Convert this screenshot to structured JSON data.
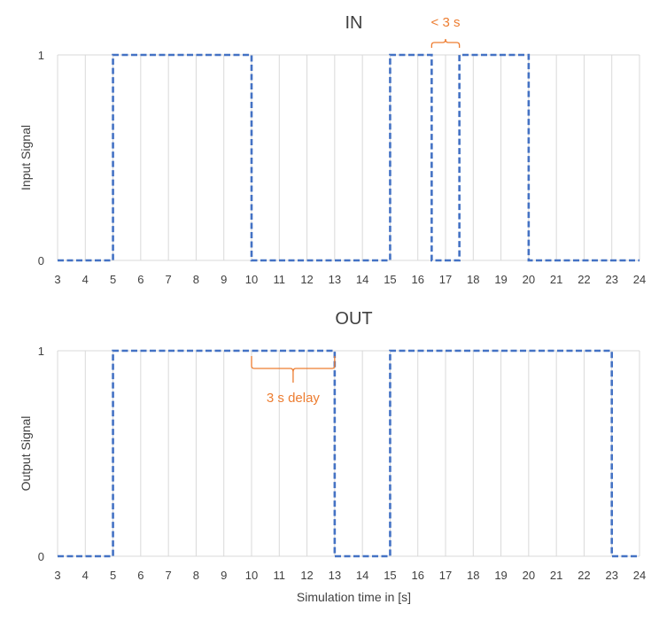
{
  "colors": {
    "series": "#4472c4",
    "annotation": "#ed7d31",
    "grid": "#d9d9d9",
    "text": "#404040"
  },
  "chart_data": [
    {
      "type": "line",
      "title": "IN",
      "xlabel": "",
      "ylabel": "Input Signal",
      "xlim": [
        3,
        24
      ],
      "ylim": [
        0,
        1
      ],
      "x_ticks": [
        3,
        4,
        5,
        6,
        7,
        8,
        9,
        10,
        11,
        12,
        13,
        14,
        15,
        16,
        17,
        18,
        19,
        20,
        21,
        22,
        23,
        24
      ],
      "y_ticks": [
        0,
        1
      ],
      "grid": "vertical",
      "step": true,
      "series": [
        {
          "x": [
            3,
            5,
            5,
            10,
            10,
            15,
            15,
            16.5,
            16.5,
            17.5,
            17.5,
            20,
            20,
            24
          ],
          "y": [
            0,
            0,
            1,
            1,
            0,
            0,
            1,
            1,
            0,
            0,
            1,
            1,
            0,
            0
          ]
        }
      ],
      "annotation": {
        "text": "< 3 s",
        "x_from": 16.5,
        "x_to": 17.5,
        "placement": "above"
      }
    },
    {
      "type": "line",
      "title": "OUT",
      "xlabel": "Simulation time in [s]",
      "ylabel": "Output Signal",
      "xlim": [
        3,
        24
      ],
      "ylim": [
        0,
        1
      ],
      "x_ticks": [
        3,
        4,
        5,
        6,
        7,
        8,
        9,
        10,
        11,
        12,
        13,
        14,
        15,
        16,
        17,
        18,
        19,
        20,
        21,
        22,
        23,
        24
      ],
      "y_ticks": [
        0,
        1
      ],
      "grid": "vertical",
      "step": true,
      "series": [
        {
          "x": [
            3,
            5,
            5,
            13,
            13,
            15,
            15,
            23,
            23,
            24
          ],
          "y": [
            0,
            0,
            1,
            1,
            0,
            0,
            1,
            1,
            0,
            0
          ]
        }
      ],
      "annotation": {
        "text": "3 s delay",
        "x_from": 10,
        "x_to": 13,
        "placement": "below"
      }
    }
  ]
}
